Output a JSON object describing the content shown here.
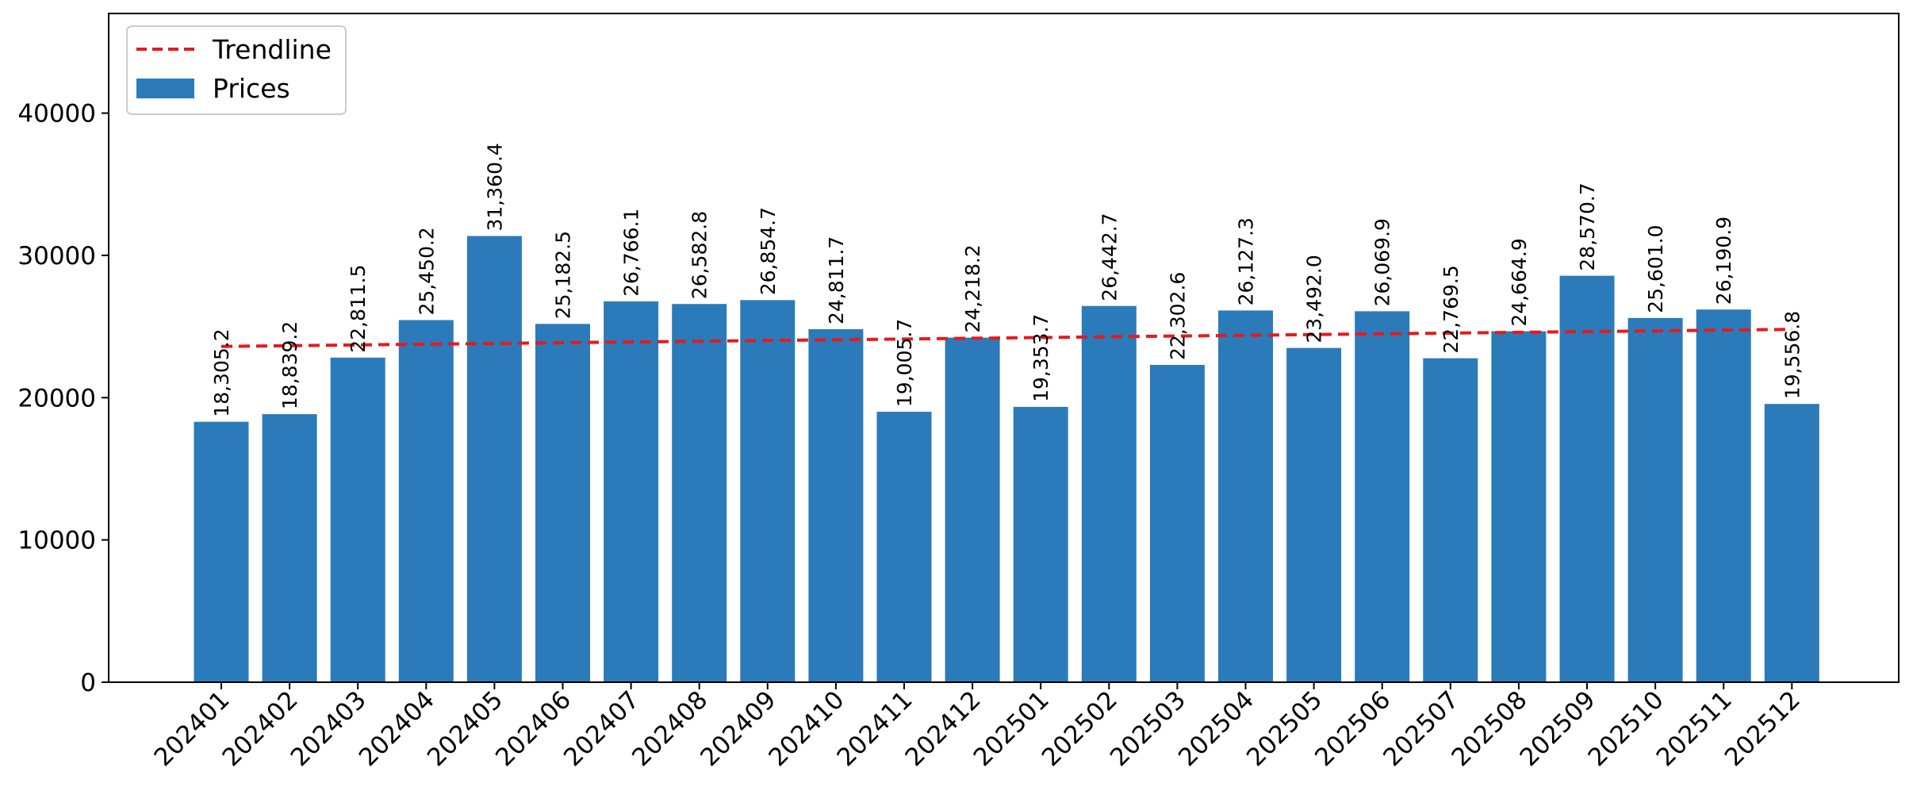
{
  "chart_data": {
    "type": "bar",
    "categories": [
      "202401",
      "202402",
      "202403",
      "202404",
      "202405",
      "202406",
      "202407",
      "202408",
      "202409",
      "202410",
      "202411",
      "202412",
      "202501",
      "202502",
      "202503",
      "202504",
      "202505",
      "202506",
      "202507",
      "202508",
      "202509",
      "202510",
      "202511",
      "202512"
    ],
    "series": [
      {
        "name": "Prices",
        "type": "bar",
        "color": "#2b7bba",
        "values": [
          18305.2,
          18839.2,
          22811.5,
          25450.2,
          31360.4,
          25182.5,
          26766.1,
          26582.8,
          26854.7,
          24811.7,
          19005.7,
          24218.2,
          19353.7,
          26442.7,
          22302.6,
          26127.3,
          23492.0,
          26069.9,
          22769.5,
          24664.9,
          28570.7,
          25601.0,
          26190.9,
          19556.8
        ],
        "data_labels": [
          "18,305.2",
          "18,839.2",
          "22,811.5",
          "25,450.2",
          "31,360.4",
          "25,182.5",
          "26,766.1",
          "26,582.8",
          "26,854.7",
          "24,811.7",
          "19,005.7",
          "24,218.2",
          "19,353.7",
          "26,442.7",
          "22,302.6",
          "26,127.3",
          "23,492.0",
          "26,069.9",
          "22,769.5",
          "24,664.9",
          "28,570.7",
          "25,601.0",
          "26,190.9",
          "19,556.8"
        ]
      },
      {
        "name": "Trendline",
        "type": "line",
        "style": "dashed",
        "color": "#e8191c",
        "start": 23600,
        "end": 24800
      }
    ],
    "title": "",
    "xlabel": "",
    "ylabel": "",
    "ylim": [
      0,
      47000
    ],
    "yticks": [
      "0",
      "10000",
      "20000",
      "30000",
      "40000"
    ],
    "ytick_values": [
      0,
      10000,
      20000,
      30000,
      40000
    ],
    "legend": {
      "placement": "top-left",
      "entries": [
        "Trendline",
        "Prices"
      ]
    },
    "grid": false
  }
}
